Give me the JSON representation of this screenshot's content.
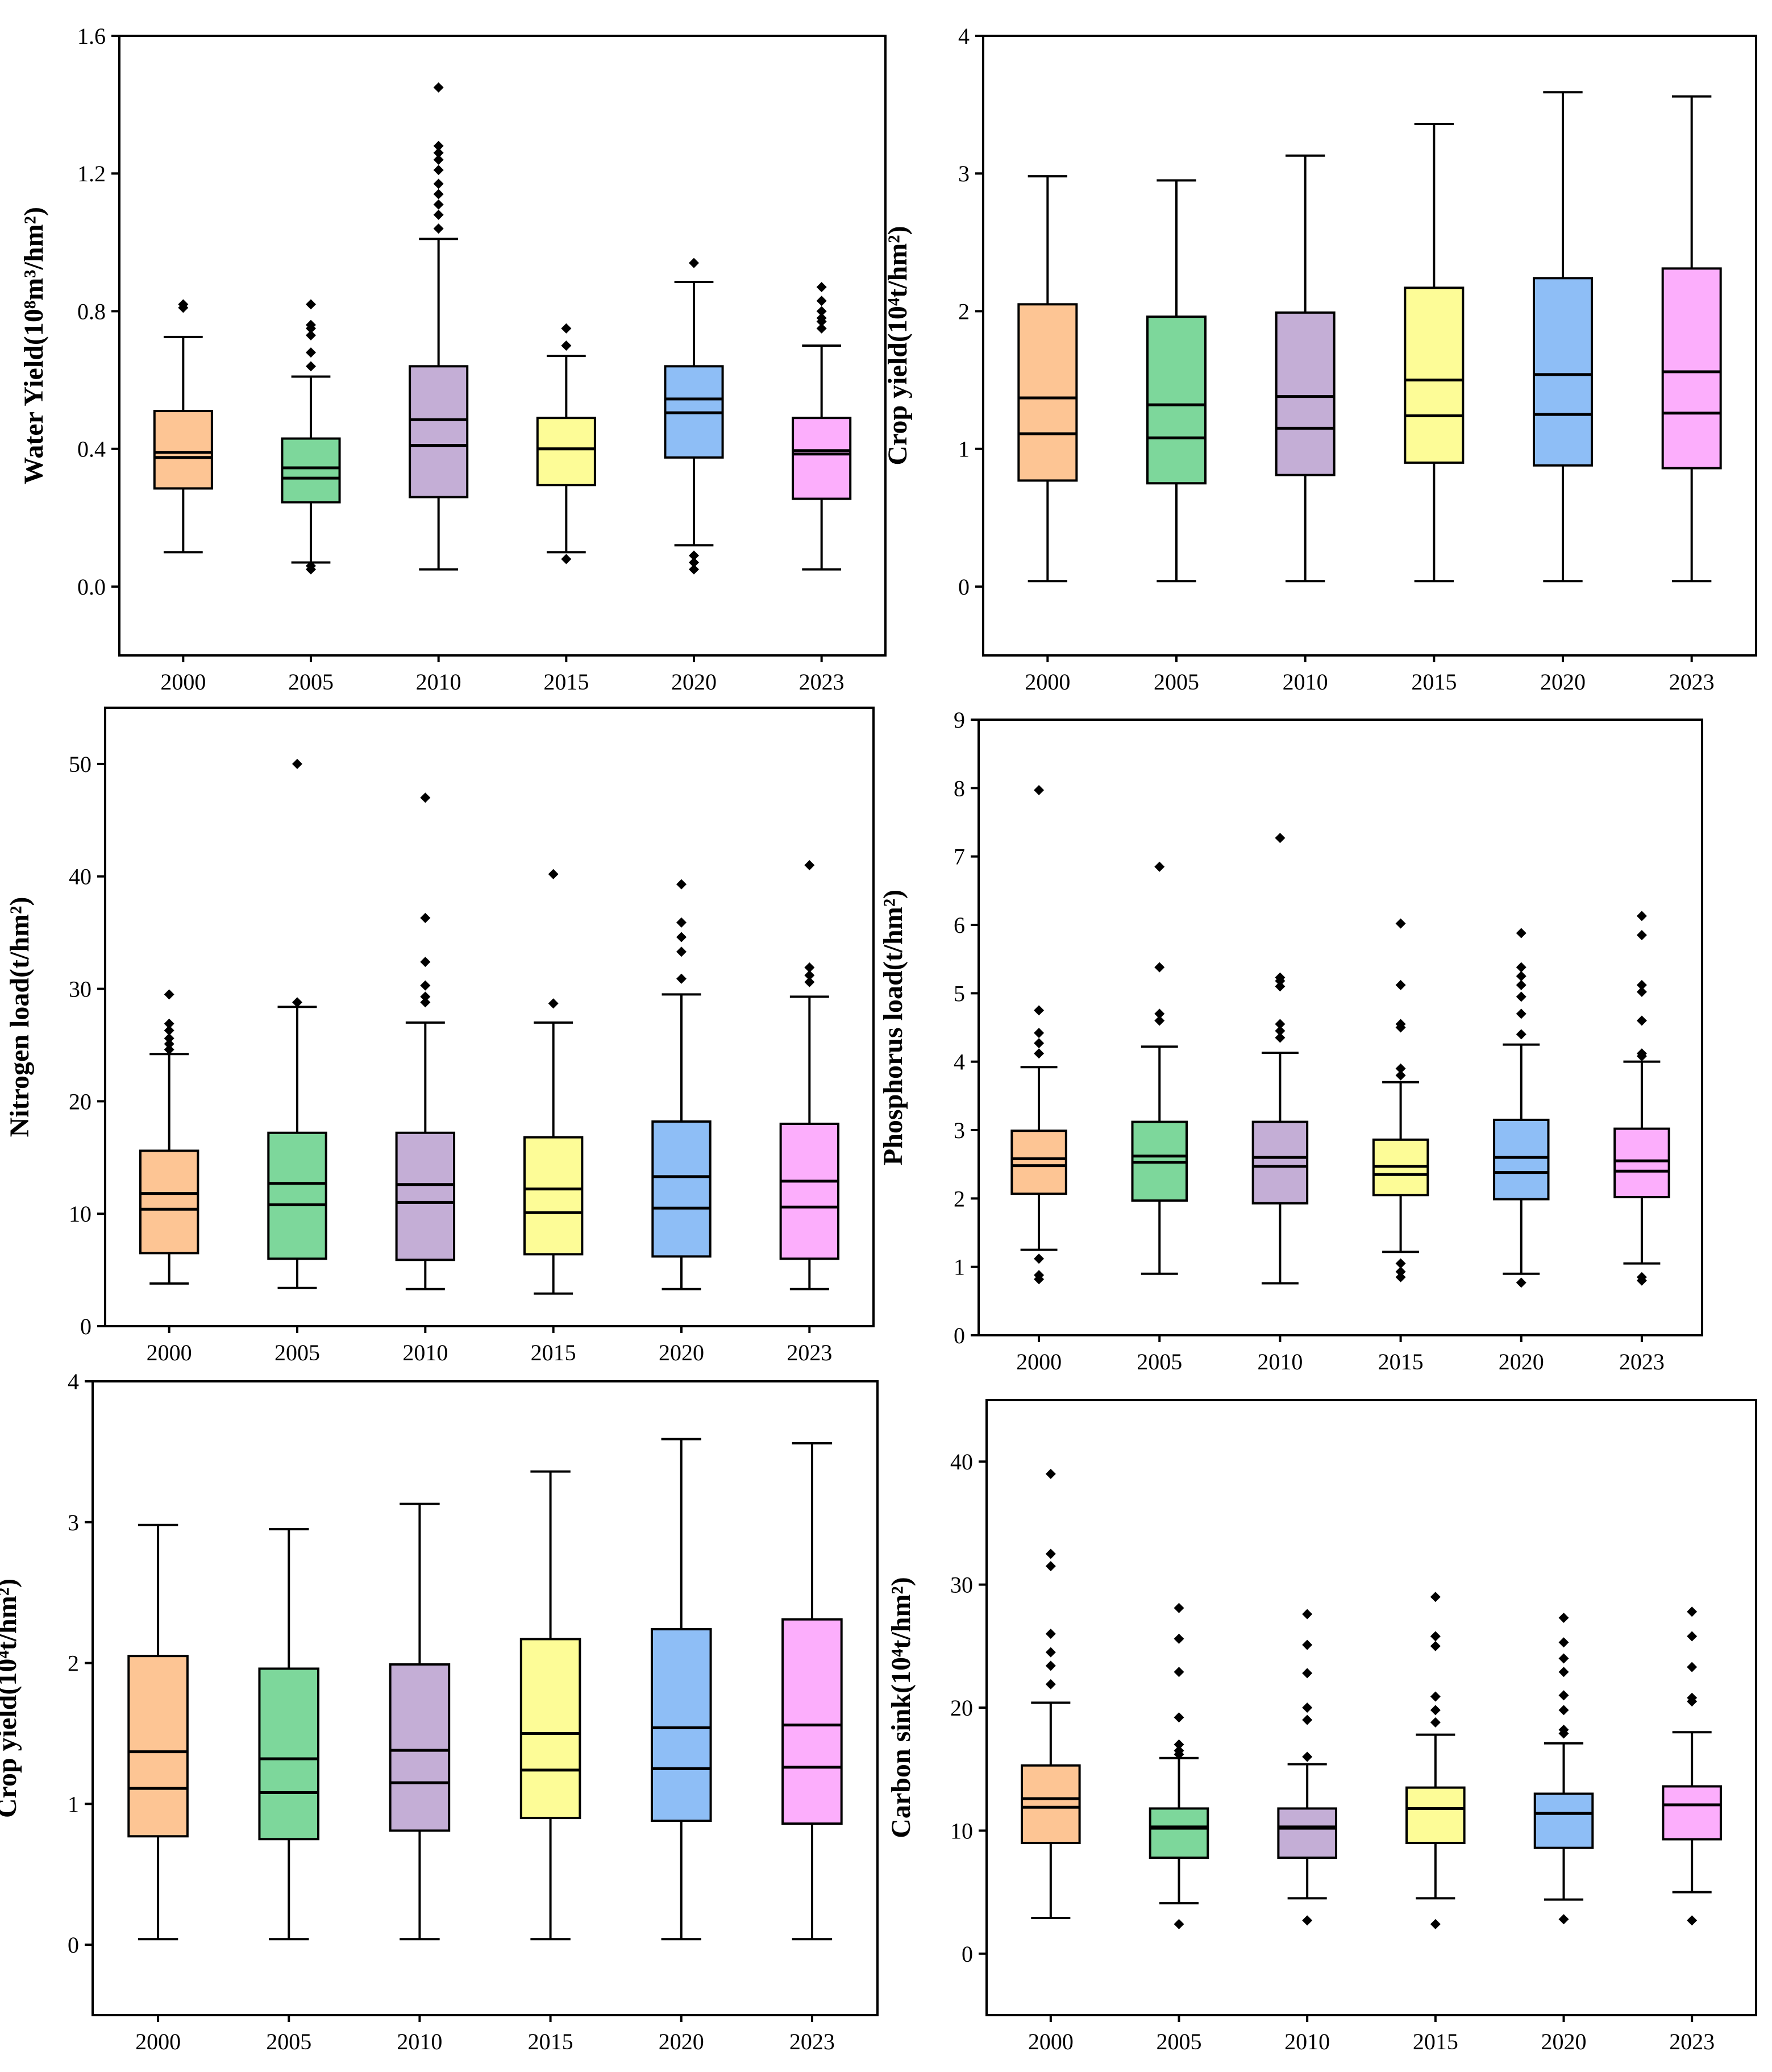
{
  "colors": [
    "#fdc594",
    "#7dd79b",
    "#c4aed6",
    "#fdfc97",
    "#8ebef6",
    "#fcaefc"
  ],
  "chart_data": [
    {
      "type": "box",
      "ylabel": "Water Yield(10⁸m³/hm²)",
      "ylim": [
        -0.2,
        1.6
      ],
      "yticks": [
        0.0,
        0.4,
        0.8,
        1.2,
        1.6
      ],
      "ytick_labels": [
        "0.0",
        "0.4",
        "0.8",
        "1.2",
        "1.6"
      ],
      "categories": [
        "2000",
        "2005",
        "2010",
        "2015",
        "2020",
        "2023"
      ],
      "boxes": [
        {
          "min": 0.1,
          "q1": 0.285,
          "median": 0.375,
          "mean": 0.39,
          "q3": 0.51,
          "max": 0.725,
          "outliers": [
            0.81,
            0.82
          ]
        },
        {
          "min": 0.07,
          "q1": 0.245,
          "median": 0.315,
          "mean": 0.345,
          "q3": 0.43,
          "max": 0.61,
          "outliers": [
            0.05,
            0.06,
            0.64,
            0.68,
            0.73,
            0.75,
            0.76,
            0.82
          ]
        },
        {
          "min": 0.05,
          "q1": 0.26,
          "median": 0.41,
          "mean": 0.485,
          "q3": 0.64,
          "max": 1.01,
          "outliers": [
            1.04,
            1.08,
            1.11,
            1.14,
            1.17,
            1.21,
            1.24,
            1.26,
            1.28,
            1.45
          ]
        },
        {
          "min": 0.1,
          "q1": 0.295,
          "median": 0.4,
          "mean": 0.4,
          "q3": 0.49,
          "max": 0.67,
          "outliers": [
            0.08,
            0.7,
            0.75
          ]
        },
        {
          "min": 0.12,
          "q1": 0.375,
          "median": 0.505,
          "mean": 0.545,
          "q3": 0.64,
          "max": 0.885,
          "outliers": [
            0.05,
            0.07,
            0.09,
            0.94
          ]
        },
        {
          "min": 0.05,
          "q1": 0.255,
          "median": 0.385,
          "mean": 0.395,
          "q3": 0.49,
          "max": 0.7,
          "outliers": [
            0.75,
            0.77,
            0.78,
            0.8,
            0.83,
            0.87
          ]
        }
      ]
    },
    {
      "type": "box",
      "ylabel": "Crop yield(10⁴t/hm²)",
      "ylim": [
        -0.5,
        4
      ],
      "yticks": [
        0,
        1,
        2,
        3,
        4
      ],
      "ytick_labels": [
        "0",
        "1",
        "2",
        "3",
        "4"
      ],
      "categories": [
        "2000",
        "2005",
        "2010",
        "2015",
        "2020",
        "2023"
      ],
      "boxes": [
        {
          "min": 0.04,
          "q1": 0.77,
          "median": 1.11,
          "mean": 1.37,
          "q3": 2.05,
          "max": 2.98,
          "outliers": []
        },
        {
          "min": 0.04,
          "q1": 0.75,
          "median": 1.08,
          "mean": 1.32,
          "q3": 1.96,
          "max": 2.95,
          "outliers": []
        },
        {
          "min": 0.04,
          "q1": 0.81,
          "median": 1.15,
          "mean": 1.38,
          "q3": 1.99,
          "max": 3.13,
          "outliers": []
        },
        {
          "min": 0.04,
          "q1": 0.9,
          "median": 1.24,
          "mean": 1.5,
          "q3": 2.17,
          "max": 3.36,
          "outliers": []
        },
        {
          "min": 0.04,
          "q1": 0.88,
          "median": 1.25,
          "mean": 1.54,
          "q3": 2.24,
          "max": 3.59,
          "outliers": []
        },
        {
          "min": 0.04,
          "q1": 0.86,
          "median": 1.26,
          "mean": 1.56,
          "q3": 2.31,
          "max": 3.56,
          "outliers": []
        }
      ]
    },
    {
      "type": "box",
      "ylabel": "Nitrogen load(t/hm²)",
      "ylim": [
        0,
        55
      ],
      "yticks": [
        0,
        10,
        20,
        30,
        40,
        50
      ],
      "ytick_labels": [
        "0",
        "10",
        "20",
        "30",
        "40",
        "50"
      ],
      "categories": [
        "2000",
        "2005",
        "2010",
        "2015",
        "2020",
        "2023"
      ],
      "boxes": [
        {
          "min": 3.8,
          "q1": 6.5,
          "median": 10.4,
          "mean": 11.8,
          "q3": 15.6,
          "max": 24.2,
          "outliers": [
            24.6,
            25.1,
            25.6,
            26.3,
            26.9,
            29.5
          ]
        },
        {
          "min": 3.4,
          "q1": 6.0,
          "median": 10.8,
          "mean": 12.7,
          "q3": 17.2,
          "max": 28.4,
          "outliers": [
            28.8,
            50.0
          ]
        },
        {
          "min": 3.3,
          "q1": 5.9,
          "median": 11.0,
          "mean": 12.6,
          "q3": 17.2,
          "max": 27.0,
          "outliers": [
            28.8,
            29.3,
            30.3,
            32.4,
            36.3,
            47.0
          ]
        },
        {
          "min": 2.9,
          "q1": 6.4,
          "median": 10.1,
          "mean": 12.2,
          "q3": 16.8,
          "max": 27.0,
          "outliers": [
            28.7,
            40.2
          ]
        },
        {
          "min": 3.3,
          "q1": 6.2,
          "median": 10.5,
          "mean": 13.3,
          "q3": 18.2,
          "max": 29.5,
          "outliers": [
            30.9,
            33.3,
            34.6,
            35.9,
            39.3
          ]
        },
        {
          "min": 3.3,
          "q1": 6.0,
          "median": 10.6,
          "mean": 12.9,
          "q3": 18.0,
          "max": 29.3,
          "outliers": [
            30.6,
            31.2,
            31.9,
            41.0
          ]
        }
      ]
    },
    {
      "type": "box",
      "ylabel": "Phosphorus load(t/hm²)",
      "ylim": [
        0,
        9
      ],
      "yticks": [
        0,
        1,
        2,
        3,
        4,
        5,
        6,
        7,
        8,
        9
      ],
      "ytick_labels": [
        "0",
        "1",
        "2",
        "3",
        "4",
        "5",
        "6",
        "7",
        "8",
        "9"
      ],
      "categories": [
        "2000",
        "2005",
        "2010",
        "2015",
        "2020",
        "2023"
      ],
      "boxes": [
        {
          "min": 1.25,
          "q1": 2.07,
          "median": 2.48,
          "mean": 2.58,
          "q3": 2.99,
          "max": 3.92,
          "outliers": [
            0.82,
            0.88,
            1.12,
            4.12,
            4.27,
            4.42,
            4.75,
            7.97
          ]
        },
        {
          "min": 0.9,
          "q1": 1.97,
          "median": 2.53,
          "mean": 2.62,
          "q3": 3.12,
          "max": 4.22,
          "outliers": [
            4.6,
            4.7,
            5.38,
            6.85
          ]
        },
        {
          "min": 0.76,
          "q1": 1.93,
          "median": 2.47,
          "mean": 2.6,
          "q3": 3.12,
          "max": 4.13,
          "outliers": [
            4.35,
            4.45,
            4.55,
            5.1,
            5.18,
            5.23,
            7.27
          ]
        },
        {
          "min": 1.22,
          "q1": 2.05,
          "median": 2.35,
          "mean": 2.47,
          "q3": 2.86,
          "max": 3.7,
          "outliers": [
            0.85,
            0.93,
            1.05,
            3.8,
            3.9,
            4.5,
            4.55,
            5.12,
            6.02
          ]
        },
        {
          "min": 0.9,
          "q1": 1.99,
          "median": 2.38,
          "mean": 2.6,
          "q3": 3.15,
          "max": 4.25,
          "outliers": [
            0.77,
            4.4,
            4.7,
            4.95,
            5.12,
            5.25,
            5.38,
            5.88
          ]
        },
        {
          "min": 1.05,
          "q1": 2.02,
          "median": 2.4,
          "mean": 2.55,
          "q3": 3.02,
          "max": 4.0,
          "outliers": [
            0.8,
            0.85,
            4.08,
            4.12,
            4.6,
            5.02,
            5.12,
            5.85,
            6.13
          ]
        }
      ]
    },
    {
      "type": "box",
      "ylabel": "Crop yield(10⁴t/hm²)",
      "ylim": [
        -0.5,
        4
      ],
      "yticks": [
        0,
        1,
        2,
        3,
        4
      ],
      "ytick_labels": [
        "0",
        "1",
        "2",
        "3",
        "4"
      ],
      "categories": [
        "2000",
        "2005",
        "2010",
        "2015",
        "2020",
        "2023"
      ],
      "boxes": [
        {
          "min": 0.04,
          "q1": 0.77,
          "median": 1.11,
          "mean": 1.37,
          "q3": 2.05,
          "max": 2.98,
          "outliers": []
        },
        {
          "min": 0.04,
          "q1": 0.75,
          "median": 1.08,
          "mean": 1.32,
          "q3": 1.96,
          "max": 2.95,
          "outliers": []
        },
        {
          "min": 0.04,
          "q1": 0.81,
          "median": 1.15,
          "mean": 1.38,
          "q3": 1.99,
          "max": 3.13,
          "outliers": []
        },
        {
          "min": 0.04,
          "q1": 0.9,
          "median": 1.24,
          "mean": 1.5,
          "q3": 2.17,
          "max": 3.36,
          "outliers": []
        },
        {
          "min": 0.04,
          "q1": 0.88,
          "median": 1.25,
          "mean": 1.54,
          "q3": 2.24,
          "max": 3.59,
          "outliers": []
        },
        {
          "min": 0.04,
          "q1": 0.86,
          "median": 1.26,
          "mean": 1.56,
          "q3": 2.31,
          "max": 3.56,
          "outliers": []
        }
      ]
    },
    {
      "type": "box",
      "ylabel": "Carbon sink(10⁴t/hm²)",
      "ylim": [
        -5,
        45
      ],
      "yticks": [
        0,
        10,
        20,
        30,
        40
      ],
      "ytick_labels": [
        "0",
        "10",
        "20",
        "30",
        "40"
      ],
      "categories": [
        "2000",
        "2005",
        "2010",
        "2015",
        "2020",
        "2023"
      ],
      "boxes": [
        {
          "min": 2.9,
          "q1": 9.0,
          "median": 11.9,
          "mean": 12.6,
          "q3": 15.3,
          "max": 20.4,
          "outliers": [
            21.9,
            23.4,
            24.5,
            26.0,
            31.5,
            32.5,
            39.0
          ]
        },
        {
          "min": 4.1,
          "q1": 7.8,
          "median": 10.2,
          "mean": 10.3,
          "q3": 11.8,
          "max": 15.9,
          "outliers": [
            2.4,
            16.2,
            16.5,
            17.0,
            19.2,
            22.9,
            25.6,
            28.1
          ]
        },
        {
          "min": 4.5,
          "q1": 7.8,
          "median": 10.2,
          "mean": 10.3,
          "q3": 11.8,
          "max": 15.4,
          "outliers": [
            2.7,
            16.0,
            19.0,
            20.0,
            22.8,
            25.1,
            27.6
          ]
        },
        {
          "min": 4.5,
          "q1": 9.0,
          "median": 11.8,
          "mean": 11.8,
          "q3": 13.5,
          "max": 17.8,
          "outliers": [
            2.4,
            18.8,
            19.8,
            20.9,
            25.0,
            25.8,
            29.0
          ]
        },
        {
          "min": 4.4,
          "q1": 8.6,
          "median": 11.4,
          "mean": 11.4,
          "q3": 13.0,
          "max": 17.1,
          "outliers": [
            2.8,
            17.9,
            18.2,
            19.8,
            21.0,
            22.9,
            24.0,
            25.3,
            27.3
          ]
        },
        {
          "min": 5.0,
          "q1": 9.3,
          "median": 12.1,
          "mean": 12.1,
          "q3": 13.6,
          "max": 18.0,
          "outliers": [
            2.7,
            20.5,
            20.8,
            23.3,
            25.8,
            27.8
          ]
        }
      ]
    }
  ]
}
